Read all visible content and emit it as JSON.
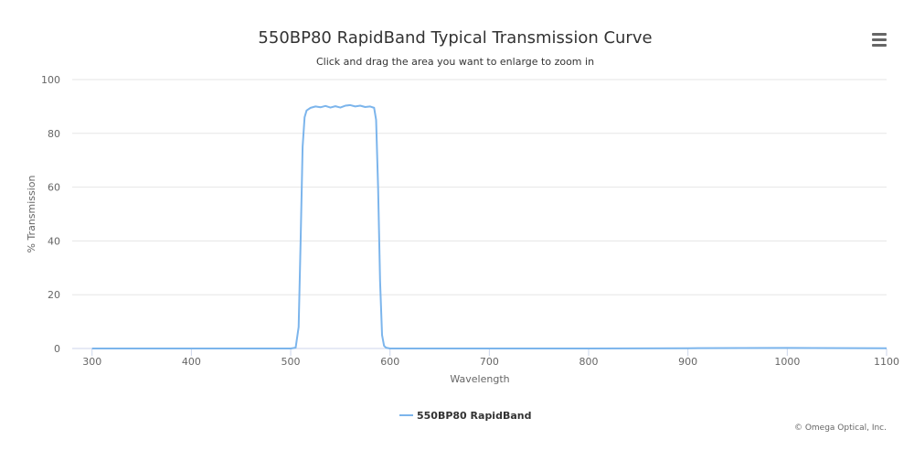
{
  "colors": {
    "series": "#7cb5ec",
    "axis_text": "#666666",
    "grid": "#e6e6e6",
    "title": "#333333"
  },
  "menu": {
    "icon": "hamburger-menu-icon"
  },
  "credits": "© Omega Optical, Inc.",
  "chart_data": {
    "type": "line",
    "title": "550BP80 RapidBand Typical Transmission Curve",
    "subtitle": "Click and drag the area you want to enlarge to zoom in",
    "xlabel": "Wavelength",
    "ylabel": "% Transmission",
    "xlim": [
      280,
      1100
    ],
    "ylim": [
      0,
      100
    ],
    "xticks": [
      300,
      400,
      500,
      600,
      700,
      800,
      900,
      1000,
      1100
    ],
    "yticks": [
      0,
      20,
      40,
      60,
      80,
      100
    ],
    "grid": true,
    "legend": "bottom-center",
    "series": [
      {
        "name": "550BP80 RapidBand",
        "x": [
          300,
          400,
          500,
          505,
          508,
          510,
          512,
          514,
          516,
          518,
          520,
          525,
          530,
          535,
          540,
          545,
          550,
          555,
          560,
          565,
          570,
          575,
          580,
          584,
          586,
          588,
          590,
          592,
          594,
          596,
          600,
          650,
          700,
          800,
          900,
          1000,
          1100
        ],
        "y": [
          0,
          0,
          0,
          0.3,
          8,
          40,
          75,
          86,
          88.5,
          89,
          89.5,
          90,
          89.7,
          90.2,
          89.6,
          90.1,
          89.6,
          90.3,
          90.5,
          90.0,
          90.3,
          89.8,
          90.0,
          89.5,
          85,
          60,
          25,
          5,
          1,
          0.3,
          0,
          0,
          0,
          0,
          0.1,
          0.2,
          0.1
        ]
      }
    ]
  }
}
